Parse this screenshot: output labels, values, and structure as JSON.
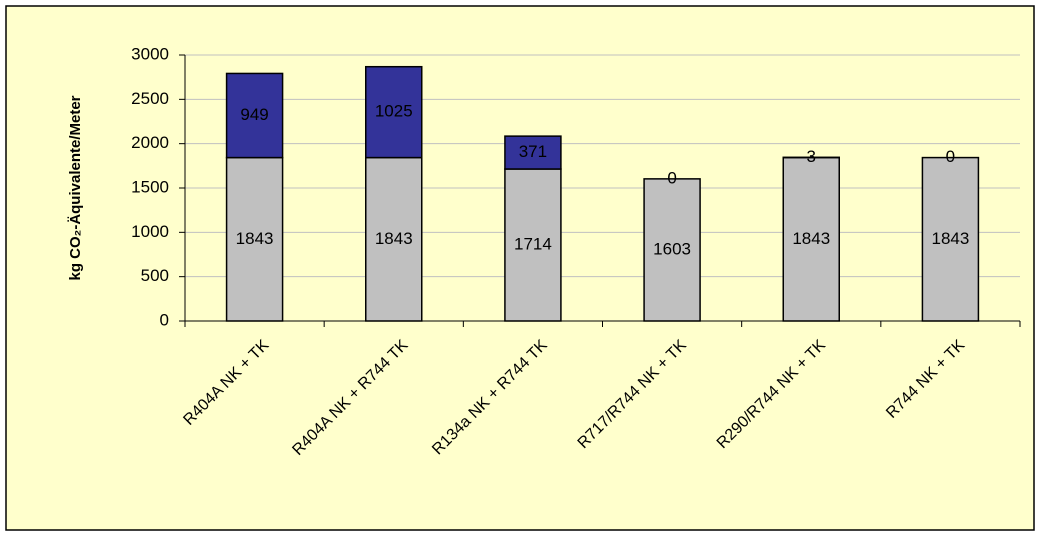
{
  "chart_data": {
    "type": "stacked_bar",
    "ylabel": "kg CO₂-Äquivalente/Meter",
    "categories": [
      "R404A NK + TK",
      "R404A NK + R744 TK",
      "R134a NK + R744 TK",
      "R717/R744 NK + TK",
      "R290/R744 NK + TK",
      "R744 NK + TK"
    ],
    "series": [
      {
        "color": "#c0c0c0",
        "values": [
          1843,
          1843,
          1714,
          1603,
          1843,
          1843
        ]
      },
      {
        "color": "#333399",
        "values": [
          949,
          1025,
          371,
          0,
          3,
          0
        ]
      }
    ],
    "ylim": [
      0,
      3000
    ],
    "yticks": [
      0,
      500,
      1000,
      1500,
      2000,
      2500,
      3000
    ],
    "grid": true
  }
}
